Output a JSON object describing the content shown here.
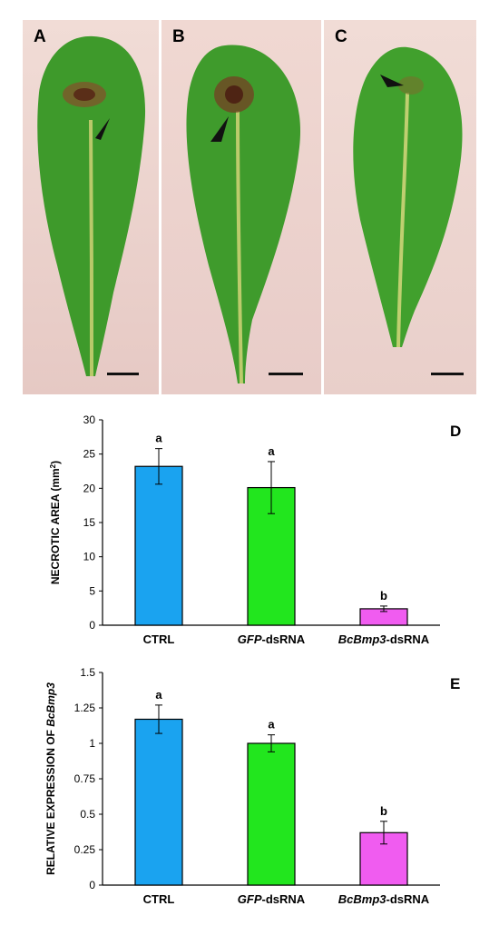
{
  "photos": [
    {
      "label": "A"
    },
    {
      "label": "B"
    },
    {
      "label": "C"
    }
  ],
  "chart_data": [
    {
      "type": "bar",
      "panel": "D",
      "categories": [
        {
          "parts": [
            {
              "text": "CTRL",
              "italic": false
            }
          ]
        },
        {
          "parts": [
            {
              "text": "GFP",
              "italic": true
            },
            {
              "text": "-dsRNA",
              "italic": false
            }
          ]
        },
        {
          "parts": [
            {
              "text": "BcBmp3",
              "italic": true
            },
            {
              "text": "-dsRNA",
              "italic": false
            }
          ]
        }
      ],
      "values": [
        23.2,
        20.1,
        2.4
      ],
      "errors": [
        2.6,
        3.8,
        0.4
      ],
      "significance": [
        "a",
        "a",
        "b"
      ],
      "colors": [
        "#1aa3f0",
        "#22e61e",
        "#f05cf0"
      ],
      "ylabel": {
        "parts": [
          {
            "text": "NECROTIC AREA (mm",
            "italic": false
          },
          {
            "text": "2",
            "sup": true
          },
          {
            "text": ")",
            "italic": false
          }
        ]
      },
      "ylim": [
        0,
        30
      ],
      "yticks": [
        0,
        5,
        10,
        15,
        20,
        25,
        30
      ],
      "yticklabels": [
        "0",
        "5",
        "10",
        "15",
        "20",
        "25",
        "30"
      ]
    },
    {
      "type": "bar",
      "panel": "E",
      "categories": [
        {
          "parts": [
            {
              "text": "CTRL",
              "italic": false
            }
          ]
        },
        {
          "parts": [
            {
              "text": "GFP",
              "italic": true
            },
            {
              "text": "-dsRNA",
              "italic": false
            }
          ]
        },
        {
          "parts": [
            {
              "text": "BcBmp3",
              "italic": true
            },
            {
              "text": "-dsRNA",
              "italic": false
            }
          ]
        }
      ],
      "values": [
        1.17,
        1.0,
        0.37
      ],
      "errors": [
        0.1,
        0.06,
        0.08
      ],
      "significance": [
        "a",
        "a",
        "b"
      ],
      "colors": [
        "#1aa3f0",
        "#22e61e",
        "#f05cf0"
      ],
      "ylabel": {
        "parts": [
          {
            "text": "RELATIVE EXPRESSION OF ",
            "italic": false
          },
          {
            "text": "BcBmp3",
            "italic": true
          }
        ]
      },
      "ylim": [
        0,
        1.5
      ],
      "yticks": [
        0,
        0.25,
        0.5,
        0.75,
        1,
        1.25,
        1.5
      ],
      "yticklabels": [
        "0",
        "0.25",
        "0.5",
        "0.75",
        "1",
        "1.25",
        "1.5"
      ]
    }
  ]
}
